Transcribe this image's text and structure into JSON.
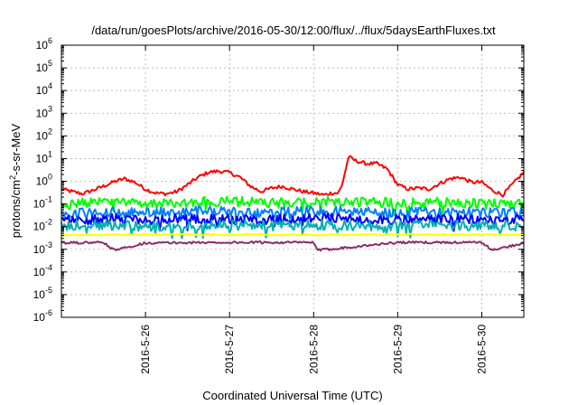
{
  "chart_data": {
    "type": "line",
    "title": "/data/run/goesPlots/archive/2016-05-30/12:00/flux/../flux/5daysEarthFluxes.txt",
    "xlabel": "Coordinated Universal Time (UTC)",
    "ylabel": {
      "prefix": "protons/cm",
      "sup": "2",
      "suffix": "-s-sr-MeV"
    },
    "yscale": "log",
    "ylim": [
      1e-06,
      1000000.0
    ],
    "y_ticks": [
      {
        "value": 1e-06,
        "base": "10",
        "exp": "-6"
      },
      {
        "value": 1e-05,
        "base": "10",
        "exp": "-5"
      },
      {
        "value": 0.0001,
        "base": "10",
        "exp": "-4"
      },
      {
        "value": 0.001,
        "base": "10",
        "exp": "-3"
      },
      {
        "value": 0.01,
        "base": "10",
        "exp": "-2"
      },
      {
        "value": 0.1,
        "base": "10",
        "exp": "-1"
      },
      {
        "value": 1,
        "base": "10",
        "exp": "0"
      },
      {
        "value": 10.0,
        "base": "10",
        "exp": "1"
      },
      {
        "value": 100.0,
        "base": "10",
        "exp": "2"
      },
      {
        "value": 1000.0,
        "base": "10",
        "exp": "3"
      },
      {
        "value": 10000.0,
        "base": "10",
        "exp": "4"
      },
      {
        "value": 100000.0,
        "base": "10",
        "exp": "5"
      },
      {
        "value": 1000000.0,
        "base": "10",
        "exp": "6"
      }
    ],
    "xlim": [
      "2016-05-25T00:00",
      "2016-05-30T12:00"
    ],
    "x_ticks": [
      "2016-5-26",
      "2016-5-27",
      "2016-5-28",
      "2016-5-29",
      "2016-5-30"
    ],
    "grid": true,
    "legend": "none",
    "series": [
      {
        "color": "#ff0000",
        "width": 2,
        "x": [
          "2016-05-25T00:00",
          "2016-05-25T03:00",
          "2016-05-25T06:00",
          "2016-05-25T09:00",
          "2016-05-25T12:00",
          "2016-05-25T15:00",
          "2016-05-25T18:00",
          "2016-05-25T21:00",
          "2016-05-26T00:00",
          "2016-05-26T03:00",
          "2016-05-26T06:00",
          "2016-05-26T09:00",
          "2016-05-26T12:00",
          "2016-05-26T15:00",
          "2016-05-26T18:00",
          "2016-05-26T21:00",
          "2016-05-27T00:00",
          "2016-05-27T03:00",
          "2016-05-27T06:00",
          "2016-05-27T09:00",
          "2016-05-27T12:00",
          "2016-05-27T15:00",
          "2016-05-27T18:00",
          "2016-05-27T21:00",
          "2016-05-28T00:00",
          "2016-05-28T03:00",
          "2016-05-28T05:00",
          "2016-05-28T07:00",
          "2016-05-28T08:00",
          "2016-05-28T10:00",
          "2016-05-28T12:00",
          "2016-05-28T15:00",
          "2016-05-28T18:00",
          "2016-05-28T21:00",
          "2016-05-29T00:00",
          "2016-05-29T03:00",
          "2016-05-29T06:00",
          "2016-05-29T09:00",
          "2016-05-29T12:00",
          "2016-05-29T15:00",
          "2016-05-29T18:00",
          "2016-05-29T21:00",
          "2016-05-30T00:00",
          "2016-05-30T03:00",
          "2016-05-30T06:00",
          "2016-05-30T09:00",
          "2016-05-30T12:00"
        ],
        "values": [
          0.45,
          0.35,
          0.28,
          0.4,
          0.6,
          0.95,
          1.3,
          0.9,
          0.45,
          0.3,
          0.28,
          0.35,
          0.7,
          1.5,
          2.5,
          2.8,
          2.4,
          1.5,
          0.6,
          0.35,
          0.5,
          0.6,
          0.45,
          0.35,
          0.3,
          0.25,
          0.3,
          0.3,
          0.6,
          12,
          8,
          6,
          6,
          3.5,
          0.7,
          0.45,
          0.5,
          0.45,
          0.8,
          1.3,
          1.5,
          0.9,
          0.9,
          0.4,
          0.25,
          0.8,
          2.5
        ]
      },
      {
        "color": "#00ff00",
        "width": 2,
        "x": [
          "2016-05-25T00:00",
          "2016-05-25T12:00",
          "2016-05-26T00:00",
          "2016-05-26T12:00",
          "2016-05-27T00:00",
          "2016-05-27T12:00",
          "2016-05-28T00:00",
          "2016-05-28T12:00",
          "2016-05-29T00:00",
          "2016-05-29T12:00",
          "2016-05-30T00:00",
          "2016-05-30T12:00"
        ],
        "values": [
          0.09,
          0.12,
          0.1,
          0.12,
          0.13,
          0.11,
          0.12,
          0.13,
          0.11,
          0.12,
          0.1,
          0.11
        ]
      },
      {
        "color": "#0080ff",
        "width": 2,
        "x": [
          "2016-05-25T00:00",
          "2016-05-25T12:00",
          "2016-05-26T00:00",
          "2016-05-26T12:00",
          "2016-05-27T00:00",
          "2016-05-27T12:00",
          "2016-05-28T00:00",
          "2016-05-28T12:00",
          "2016-05-29T00:00",
          "2016-05-29T12:00",
          "2016-05-30T00:00",
          "2016-05-30T12:00"
        ],
        "values": [
          0.035,
          0.045,
          0.04,
          0.05,
          0.045,
          0.04,
          0.05,
          0.045,
          0.04,
          0.045,
          0.04,
          0.04
        ]
      },
      {
        "color": "#0000ff",
        "width": 2,
        "x": [
          "2016-05-25T00:00",
          "2016-05-25T12:00",
          "2016-05-26T00:00",
          "2016-05-26T12:00",
          "2016-05-27T00:00",
          "2016-05-27T12:00",
          "2016-05-28T00:00",
          "2016-05-28T12:00",
          "2016-05-29T00:00",
          "2016-05-29T12:00",
          "2016-05-30T00:00",
          "2016-05-30T12:00"
        ],
        "values": [
          0.018,
          0.022,
          0.02,
          0.024,
          0.022,
          0.02,
          0.024,
          0.022,
          0.02,
          0.022,
          0.019,
          0.02
        ]
      },
      {
        "color": "#00b0b0",
        "width": 2,
        "x": [
          "2016-05-25T00:00",
          "2016-05-25T12:00",
          "2016-05-26T00:00",
          "2016-05-26T12:00",
          "2016-05-27T00:00",
          "2016-05-27T12:00",
          "2016-05-28T00:00",
          "2016-05-28T12:00",
          "2016-05-29T00:00",
          "2016-05-29T12:00",
          "2016-05-30T00:00",
          "2016-05-30T12:00"
        ],
        "values": [
          0.011,
          0.012,
          0.01,
          0.011,
          0.012,
          0.011,
          0.012,
          0.011,
          0.011,
          0.012,
          0.011,
          0.011
        ]
      },
      {
        "color": "#ffff00",
        "width": 2,
        "x": [
          "2016-05-25T00:00",
          "2016-05-26T00:00",
          "2016-05-27T00:00",
          "2016-05-28T00:00",
          "2016-05-29T00:00",
          "2016-05-30T00:00",
          "2016-05-30T12:00"
        ],
        "values": [
          0.0042,
          0.0045,
          0.0044,
          0.0043,
          0.0045,
          0.0044,
          0.0044
        ]
      },
      {
        "color": "#8b2d6b",
        "width": 2,
        "x": [
          "2016-05-25T00:00",
          "2016-05-25T12:00",
          "2016-05-25T15:00",
          "2016-05-26T00:00",
          "2016-05-27T00:00",
          "2016-05-28T00:00",
          "2016-05-28T01:00",
          "2016-05-29T00:00",
          "2016-05-30T00:00",
          "2016-05-30T03:00",
          "2016-05-30T12:00"
        ],
        "values": [
          0.0019,
          0.002,
          0.0009,
          0.0019,
          0.002,
          0.002,
          0.0009,
          0.002,
          0.002,
          0.0009,
          0.0019
        ]
      }
    ]
  }
}
